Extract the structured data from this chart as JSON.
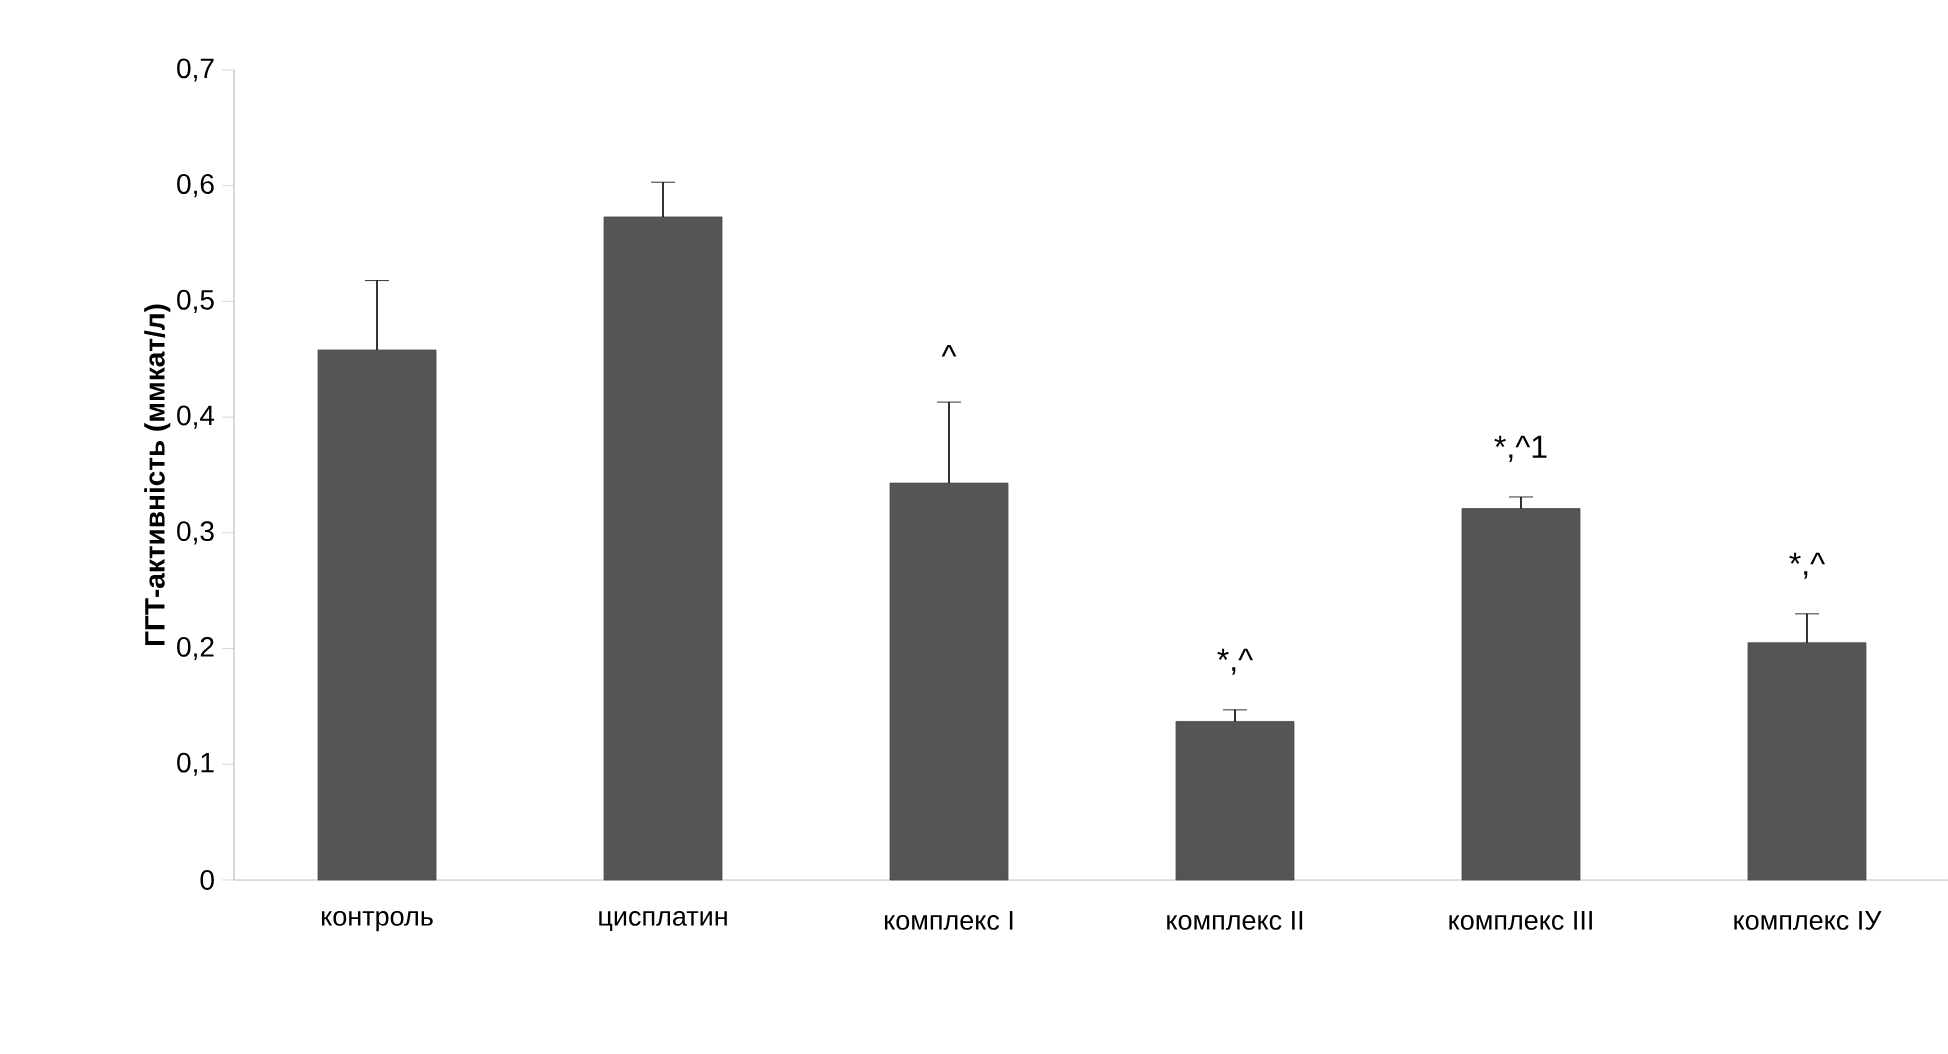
{
  "chart_data": {
    "type": "bar",
    "ylabel": "ГГТ-активність (ммкат/л)",
    "categories": [
      "контроль",
      "цисплатин",
      "комплекс I",
      "комплекс II",
      "комплекс III",
      "комплекс IУ"
    ],
    "values": [
      0.458,
      0.573,
      0.343,
      0.137,
      0.321,
      0.205
    ],
    "errors": [
      0.06,
      0.03,
      0.07,
      0.01,
      0.01,
      0.025
    ],
    "color": "#555555",
    "ylim": [
      0,
      0.7
    ],
    "yticks": [
      {
        "value": 0,
        "label": "0"
      },
      {
        "value": 0.1,
        "label": "0,1"
      },
      {
        "value": 0.2,
        "label": "0,2"
      },
      {
        "value": 0.3,
        "label": "0,3"
      },
      {
        "value": 0.4,
        "label": "0,4"
      },
      {
        "value": 0.5,
        "label": "0,5"
      },
      {
        "value": 0.6,
        "label": "0,6"
      },
      {
        "value": 0.7,
        "label": "0,7"
      }
    ],
    "grid": false,
    "annotations": [
      {
        "text": "^",
        "x": "комплекс I",
        "y": 0.413
      },
      {
        "text": "*,^",
        "x": "комплекс II",
        "y": 0.147
      },
      {
        "text": "*,^1",
        "x": "комплекс III",
        "y": 0.331
      },
      {
        "text": "*,^",
        "x": "комплекс IУ",
        "y": 0.23
      }
    ]
  }
}
